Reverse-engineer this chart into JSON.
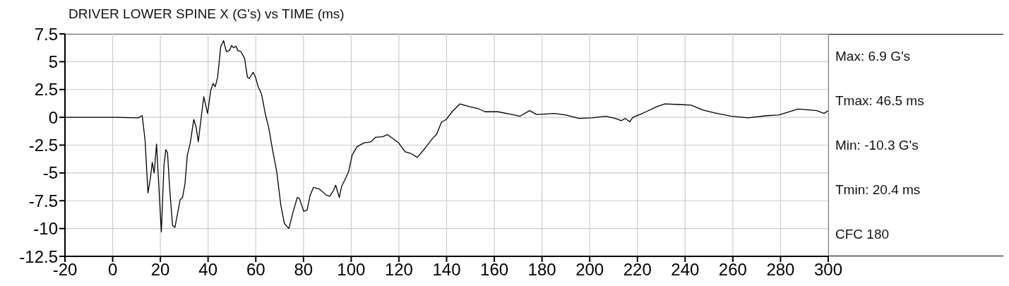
{
  "chart_data": {
    "type": "line",
    "title": "DRIVER LOWER SPINE X (G's) vs TIME (ms)",
    "annotations": [
      "Max: 6.9 G's",
      "Tmax: 46.5 ms",
      "Min: -10.3 G's",
      "Tmin: 20.4 ms",
      "CFC 180"
    ],
    "series": [
      {
        "color": "#000000",
        "x": [
          -20,
          0,
          10.7,
          12.4,
          13.6,
          14.8,
          15.8,
          16.6,
          17.4,
          18.4,
          20.4,
          21.5,
          22.3,
          23.0,
          23.9,
          25.1,
          26.1,
          28.3,
          29.3,
          30.3,
          31.3,
          32.5,
          34.0,
          35.0,
          35.9,
          37.0,
          38.2,
          39.8,
          41.1,
          42.1,
          43.0,
          44.0,
          45.3,
          46.5,
          47.0,
          47.7,
          48.9,
          49.9,
          50.7,
          51.7,
          52.5,
          53.8,
          55.3,
          56.5,
          57.3,
          58.9,
          59.9,
          61.0,
          62.4,
          64.1,
          65.4,
          67.1,
          68.8,
          70.5,
          72.0,
          73.9,
          75.4,
          77.4,
          78.3,
          80.1,
          81.5,
          82.8,
          84.2,
          86.7,
          89.6,
          91.0,
          92.5,
          93.5,
          95.0,
          96.0,
          97.4,
          98.9,
          100.4,
          102.4,
          105.3,
          108.3,
          110.2,
          113.2,
          115.2,
          119.9,
          122.6,
          125.0,
          127.7,
          130.9,
          133.9,
          135.9,
          137.8,
          139.8,
          142.3,
          145.5,
          149.7,
          153.1,
          156.1,
          161.5,
          167.4,
          170.8,
          174.8,
          177.7,
          185.1,
          190.0,
          195.5,
          200.9,
          206.8,
          210.7,
          213.2,
          214.9,
          216.8,
          218.1,
          221.6,
          223.6,
          228.1,
          231.5,
          237.5,
          242.5,
          247.5,
          252.4,
          259.4,
          266.4,
          274.3,
          279.3,
          287.3,
          295.2,
          298.2,
          300
        ],
        "values": [
          0,
          0,
          -0.05,
          0.15,
          -2.1,
          -6.8,
          -5.5,
          -4.05,
          -5.0,
          -2.4,
          -10.3,
          -4.3,
          -2.9,
          -3.2,
          -6.4,
          -9.7,
          -9.9,
          -7.4,
          -7.2,
          -6.0,
          -3.4,
          -2.35,
          -0.2,
          -0.9,
          -2.2,
          -0.2,
          1.85,
          0.35,
          2.4,
          3.05,
          2.75,
          3.6,
          6.35,
          6.9,
          6.45,
          5.9,
          6.0,
          6.45,
          6.25,
          6.4,
          6.0,
          5.9,
          5.3,
          3.6,
          3.5,
          4.05,
          3.6,
          2.75,
          2.1,
          0.2,
          -0.9,
          -3.0,
          -4.9,
          -7.9,
          -9.55,
          -10.0,
          -8.7,
          -7.2,
          -7.3,
          -8.45,
          -8.35,
          -7.0,
          -6.3,
          -6.45,
          -7.0,
          -7.1,
          -6.6,
          -6.1,
          -7.2,
          -6.2,
          -5.6,
          -4.9,
          -3.4,
          -2.65,
          -2.3,
          -2.2,
          -1.8,
          -1.75,
          -1.55,
          -2.3,
          -3.1,
          -3.25,
          -3.6,
          -2.8,
          -1.95,
          -1.5,
          -0.45,
          -0.2,
          0.5,
          1.2,
          0.95,
          0.8,
          0.5,
          0.5,
          0.25,
          0.1,
          0.6,
          0.25,
          0.35,
          0.2,
          -0.1,
          -0.05,
          0.1,
          -0.1,
          -0.3,
          -0.1,
          -0.4,
          0,
          0.3,
          0.5,
          0.95,
          1.2,
          1.15,
          1.1,
          0.65,
          0.4,
          0.1,
          -0.05,
          0.15,
          0.2,
          0.75,
          0.6,
          0.35,
          0.6
        ]
      }
    ],
    "xlim": [
      -20,
      300
    ],
    "xticks": [
      -20,
      0,
      20,
      40,
      60,
      80,
      100,
      120,
      140,
      160,
      180,
      200,
      220,
      240,
      260,
      280,
      300
    ],
    "ylim": [
      -12.5,
      7.5
    ],
    "yticks": [
      -12.5,
      -10,
      -7.5,
      -5,
      -2.5,
      0,
      2.5,
      5,
      7.5
    ],
    "grid": true,
    "legend": false,
    "marker": "none",
    "line_style": "solid"
  }
}
